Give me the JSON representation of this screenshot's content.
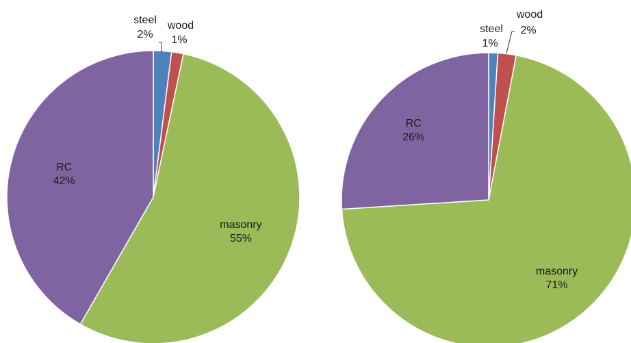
{
  "colors": {
    "steel": "#4F81BD",
    "wood": "#C0504D",
    "masonry": "#9BBB59",
    "RC": "#8064A2"
  },
  "chart_data": [
    {
      "type": "pie",
      "title": "",
      "start": "top, clockwise",
      "slices": [
        {
          "name": "steel",
          "value": 2,
          "label": "2%",
          "label_position": "outside"
        },
        {
          "name": "wood",
          "value": 1.3,
          "label": "1%",
          "label_position": "outside"
        },
        {
          "name": "masonry",
          "value": 55,
          "label": "55%",
          "label_position": "inside"
        },
        {
          "name": "RC",
          "value": 41.7,
          "label": "42%",
          "label_position": "inside"
        }
      ]
    },
    {
      "type": "pie",
      "title": "",
      "start": "top, clockwise",
      "slices": [
        {
          "name": "steel",
          "value": 1,
          "label": "1%",
          "label_position": "outside"
        },
        {
          "name": "wood",
          "value": 2,
          "label": "2%",
          "label_position": "outside"
        },
        {
          "name": "masonry",
          "value": 71,
          "label": "71%",
          "label_position": "inside"
        },
        {
          "name": "RC",
          "value": 26,
          "label": "26%",
          "label_position": "inside"
        }
      ]
    }
  ]
}
